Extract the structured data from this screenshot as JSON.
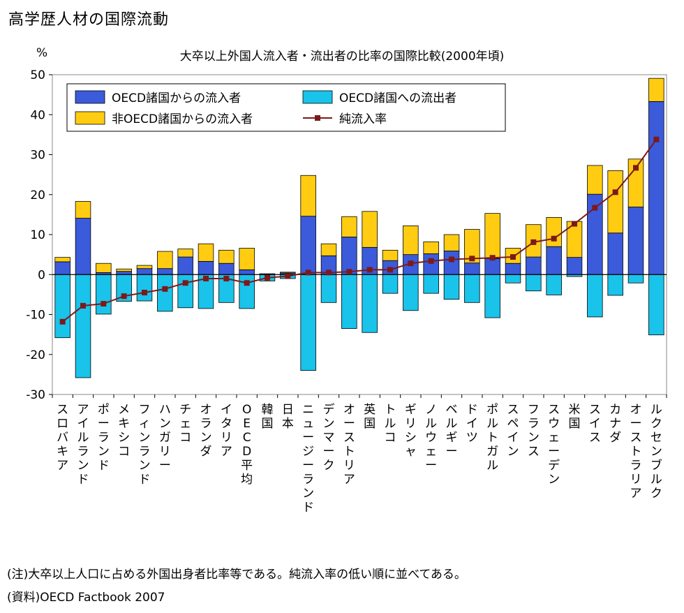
{
  "header": {
    "title": "高学歴人材の国際流動"
  },
  "footer": {
    "note": "(注)大卒以上人口に占める外国出身者比率等である。純流入率の低い順に並べてある。",
    "source": "(資料)OECD Factbook 2007"
  },
  "chart_data": {
    "type": "bar",
    "stacked": true,
    "title": "大卒以上外国人流入者・流出者の比率の国際比較(2000年頃)",
    "ylabel": "%",
    "ylim": [
      -30,
      50
    ],
    "yticks": [
      50,
      40,
      30,
      20,
      10,
      0,
      -10,
      -20,
      -30
    ],
    "grid": false,
    "legend_position": "top-left",
    "categories": [
      "スロバキア",
      "アイルランド",
      "ポーランド",
      "メキシコ",
      "フィンランド",
      "ハンガリー",
      "チェコ",
      "オランダ",
      "イタリア",
      "OECD平均",
      "韓国",
      "日本",
      "ニュージーランド",
      "デンマーク",
      "オーストリア",
      "英国",
      "トルコ",
      "ギリシャ",
      "ノルウェー",
      "ベルギー",
      "ドイツ",
      "ポルトガル",
      "スペイン",
      "フランス",
      "スウェーデン",
      "米国",
      "スイス",
      "カナダ",
      "オーストラリア",
      "ルクセンブルク"
    ],
    "series": [
      {
        "name": "OECD諸国からの流入者",
        "type": "bar",
        "color": "#3b5bdb",
        "values": [
          3.2,
          14.1,
          0.5,
          0.8,
          1.5,
          1.5,
          4.4,
          3.3,
          2.8,
          1.2,
          0.2,
          0.4,
          14.6,
          4.7,
          9.4,
          6.8,
          3.5,
          5.0,
          5.2,
          5.9,
          2.9,
          4.0,
          2.8,
          4.4,
          7.0,
          4.3,
          20.1,
          10.4,
          16.9,
          43.3
        ]
      },
      {
        "name": "OECD諸国への流出者",
        "type": "bar",
        "color": "#19c3ea",
        "values": [
          -15.8,
          -25.8,
          -9.9,
          -6.7,
          -6.6,
          -9.2,
          -8.3,
          -8.5,
          -7.0,
          -8.5,
          -1.6,
          -1.0,
          -24.0,
          -7.0,
          -13.5,
          -14.5,
          -4.7,
          -9.0,
          -4.7,
          -6.2,
          -7.0,
          -10.8,
          -2.1,
          -4.1,
          -5.1,
          -0.5,
          -10.6,
          -5.2,
          -2.1,
          -15.1
        ]
      },
      {
        "name": "非OECD諸国からの流入者",
        "type": "bar",
        "color": "#ffcc11",
        "values": [
          1.1,
          4.2,
          2.3,
          0.6,
          0.8,
          4.3,
          2.0,
          4.4,
          3.3,
          5.4,
          0.0,
          0.2,
          10.2,
          3.0,
          5.1,
          9.0,
          2.6,
          7.2,
          3.0,
          4.1,
          8.4,
          11.3,
          3.8,
          8.1,
          7.3,
          9.0,
          7.2,
          15.6,
          12.0,
          5.8
        ]
      },
      {
        "name": "純流入率",
        "type": "line",
        "color": "#7b1a1a",
        "values": [
          -11.8,
          -7.8,
          -7.3,
          -5.4,
          -4.5,
          -3.6,
          -2.1,
          -1.0,
          -1.0,
          -2.1,
          -0.8,
          -0.4,
          0.5,
          0.5,
          0.7,
          1.2,
          1.2,
          2.8,
          3.4,
          3.8,
          4.0,
          4.2,
          4.4,
          8.1,
          9.0,
          12.7,
          16.7,
          20.6,
          26.7,
          33.8
        ]
      }
    ]
  }
}
